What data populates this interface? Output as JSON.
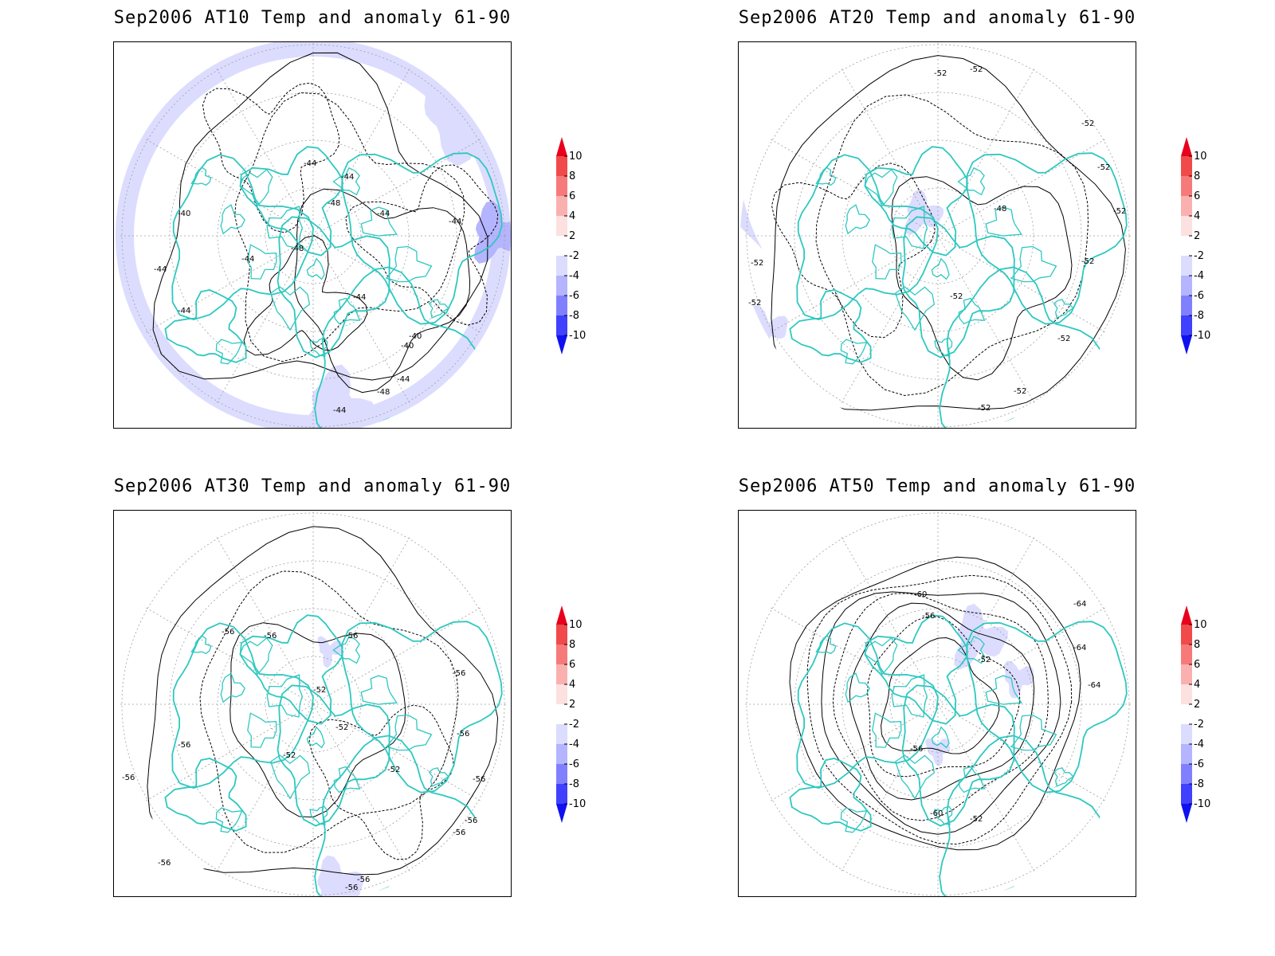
{
  "panels": [
    {
      "title": "Sep2006 AT10 Temp and anomaly 61-90",
      "contour_labels": [
        "-44",
        "-44",
        "-40",
        "-48",
        "-44",
        "-44",
        "-48",
        "-44",
        "-44",
        "-44",
        "-44",
        "-40",
        "-40",
        "-44",
        "-48",
        "-44"
      ]
    },
    {
      "title": "Sep2006 AT20 Temp and anomaly 61-90",
      "contour_labels": [
        "-52",
        "-52",
        "-52",
        "-52",
        "-52",
        "-52",
        "-48",
        "-52",
        "-52",
        "-52",
        "-52",
        "-52",
        "-52"
      ]
    },
    {
      "title": "Sep2006 AT30 Temp and anomaly 61-90",
      "contour_labels": [
        "-56",
        "-56",
        "-56",
        "-52",
        "-52",
        "-56",
        "-56",
        "-56",
        "-56",
        "-56",
        "-52",
        "-52",
        "-56",
        "-56",
        "-56",
        "-56",
        "-56"
      ]
    },
    {
      "title": "Sep2006 AT50 Temp and anomaly 61-90",
      "contour_labels": [
        "-60",
        "-56",
        "-64",
        "-52",
        "-64",
        "-64",
        "-52",
        "-56",
        "-60"
      ]
    }
  ],
  "colorbar": {
    "levels": [
      "10",
      "8",
      "6",
      "4",
      "2",
      "-2",
      "-4",
      "-6",
      "-8",
      "-10"
    ],
    "colors": [
      "#e8001c",
      "#f04a4a",
      "#f77a7a",
      "#fbb0b0",
      "#fde0e0",
      "#ffffff",
      "#dcdcff",
      "#b4b4ff",
      "#8080ff",
      "#4040ff",
      "#1010f0"
    ]
  },
  "colors": {
    "coastline": "#2ec8c0",
    "contour": "#000000",
    "grid": "#a0a0a0",
    "anomaly_weak": "#dcdcff",
    "anomaly_mid": "#b4b4ff"
  }
}
